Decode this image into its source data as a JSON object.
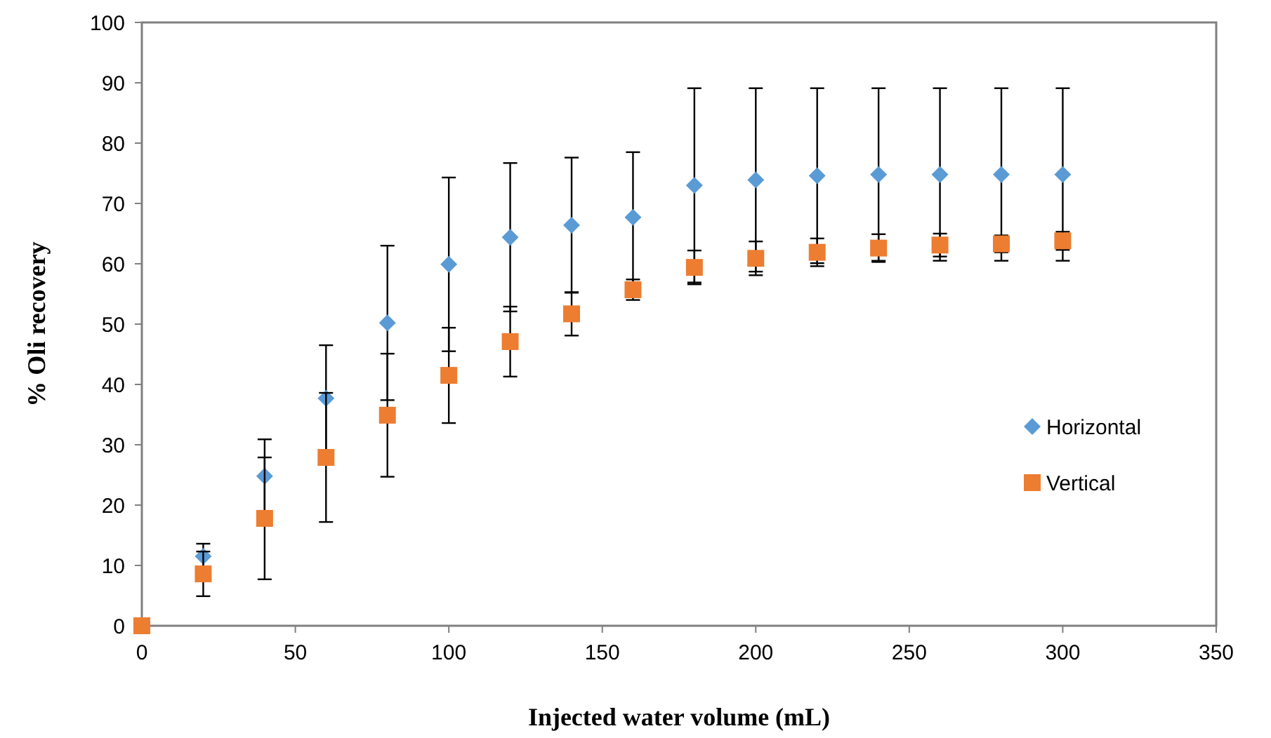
{
  "chart_data": {
    "type": "scatter",
    "xlabel": "Injected water volume (mL)",
    "ylabel": "% Oli recovery",
    "x": [
      0,
      20,
      40,
      60,
      80,
      100,
      120,
      140,
      160,
      180,
      200,
      220,
      240,
      260,
      280,
      300
    ],
    "series": [
      {
        "name": "Horizontal",
        "color": "#5b9bd5",
        "marker": "diamond",
        "values": [
          null,
          11.5,
          24.8,
          37.7,
          50.2,
          59.9,
          64.4,
          66.4,
          67.7,
          73.0,
          73.9,
          74.6,
          74.8,
          74.8,
          74.8,
          74.8
        ],
        "errors": [
          null,
          2.1,
          6.1,
          8.8,
          12.8,
          14.4,
          12.3,
          11.2,
          10.8,
          16.1,
          15.2,
          14.5,
          14.3,
          14.3,
          14.3,
          14.3
        ]
      },
      {
        "name": "Vertical",
        "color": "#ed7d31",
        "marker": "square",
        "values": [
          0,
          8.6,
          17.8,
          27.9,
          34.9,
          41.5,
          47.1,
          51.7,
          55.7,
          59.4,
          60.9,
          61.9,
          62.6,
          63.1,
          63.3,
          63.8
        ],
        "errors": [
          null,
          3.7,
          10.1,
          10.7,
          10.2,
          7.9,
          5.8,
          3.6,
          1.7,
          2.8,
          2.8,
          2.3,
          2.3,
          1.9,
          1.4,
          1.5
        ]
      }
    ],
    "xlim": [
      0,
      350
    ],
    "xticks": [
      0,
      50,
      100,
      150,
      200,
      250,
      300,
      350
    ],
    "ylim": [
      0,
      100
    ],
    "yticks": [
      0,
      10,
      20,
      30,
      40,
      50,
      60,
      70,
      80,
      90,
      100
    ],
    "grid": false,
    "legend": "right"
  }
}
